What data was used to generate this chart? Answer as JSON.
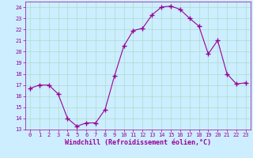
{
  "x": [
    0,
    1,
    2,
    3,
    4,
    5,
    6,
    7,
    8,
    9,
    10,
    11,
    12,
    13,
    14,
    15,
    16,
    17,
    18,
    19,
    20,
    21,
    22,
    23
  ],
  "y": [
    16.7,
    17.0,
    17.0,
    16.2,
    14.0,
    13.3,
    13.6,
    13.6,
    14.8,
    17.8,
    20.5,
    21.9,
    22.1,
    23.3,
    24.0,
    24.1,
    23.8,
    23.0,
    22.3,
    19.8,
    21.0,
    18.0,
    17.1,
    17.2
  ],
  "line_color": "#990099",
  "marker": "+",
  "marker_size": 4,
  "marker_lw": 1.0,
  "bg_color": "#cceeff",
  "grid_color": "#aaddcc",
  "xlabel": "Windchill (Refroidissement éolien,°C)",
  "xlabel_color": "#990099",
  "xlim": [
    -0.5,
    23.5
  ],
  "ylim": [
    13,
    24.5
  ],
  "yticks": [
    13,
    14,
    15,
    16,
    17,
    18,
    19,
    20,
    21,
    22,
    23,
    24
  ],
  "xticks": [
    0,
    1,
    2,
    3,
    4,
    5,
    6,
    7,
    8,
    9,
    10,
    11,
    12,
    13,
    14,
    15,
    16,
    17,
    18,
    19,
    20,
    21,
    22,
    23
  ],
  "tick_color": "#990099",
  "tick_fontsize": 5.0,
  "xlabel_fontsize": 6.0,
  "spine_color": "#990099",
  "line_width": 0.8
}
